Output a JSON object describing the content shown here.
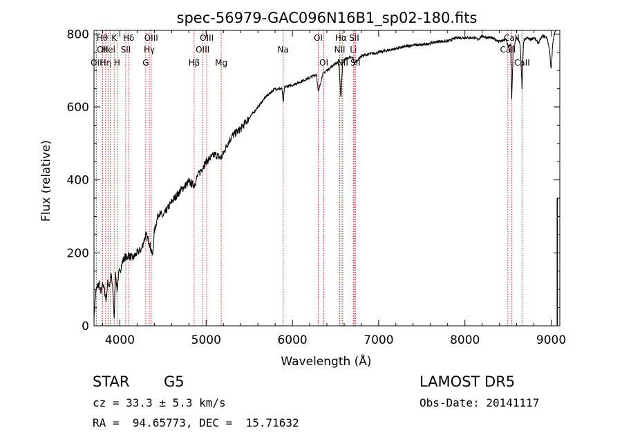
{
  "chart_data": {
    "type": "line",
    "title": "spec-56979-GAC096N16B1_sp02-180.fits",
    "xlabel": "Wavelength (Å)",
    "ylabel": "Flux (relative)",
    "xlim": [
      3700,
      9100
    ],
    "ylim": [
      0,
      810
    ],
    "xticks": [
      4000,
      5000,
      6000,
      7000,
      8000,
      9000
    ],
    "yticks": [
      0,
      200,
      400,
      600,
      800
    ],
    "grid": false,
    "line_color": "#000000",
    "marker_color": "#cc2222",
    "series": [
      {
        "x": [
          3700,
          3720,
          3740,
          3760,
          3780,
          3800,
          3820,
          3840,
          3860,
          3880,
          3900,
          3920,
          3935,
          3950,
          3968,
          3985,
          4000,
          4030,
          4060,
          4080,
          4100,
          4120,
          4150,
          4200,
          4250,
          4300,
          4340,
          4380,
          4400,
          4450,
          4500,
          4600,
          4700,
          4800,
          4861,
          4900,
          5000,
          5100,
          5175,
          5250,
          5300,
          5400,
          5500,
          5600,
          5700,
          5800,
          5880,
          5893,
          5910,
          6000,
          6100,
          6200,
          6280,
          6300,
          6350,
          6400,
          6450,
          6500,
          6540,
          6563,
          6580,
          6600,
          6650,
          6700,
          6720,
          6800,
          6900,
          7000,
          7100,
          7200,
          7300,
          7400,
          7500,
          7600,
          7700,
          7800,
          7900,
          8000,
          8100,
          8150,
          8200,
          8250,
          8300,
          8400,
          8480,
          8500,
          8530,
          8542,
          8560,
          8600,
          8640,
          8662,
          8680,
          8720,
          8760,
          8800,
          8850,
          8900,
          8950,
          8980,
          9000,
          9020,
          9040,
          9050
        ],
        "y": [
          20,
          90,
          110,
          115,
          85,
          120,
          100,
          70,
          120,
          110,
          140,
          90,
          20,
          150,
          95,
          140,
          150,
          175,
          190,
          185,
          195,
          190,
          185,
          200,
          210,
          250,
          230,
          190,
          260,
          310,
          300,
          340,
          370,
          395,
          385,
          410,
          450,
          470,
          460,
          500,
          520,
          540,
          570,
          600,
          630,
          650,
          650,
          610,
          655,
          660,
          670,
          680,
          690,
          640,
          690,
          700,
          710,
          720,
          720,
          620,
          715,
          730,
          735,
          735,
          720,
          740,
          745,
          750,
          755,
          760,
          765,
          770,
          770,
          775,
          780,
          780,
          790,
          790,
          790,
          785,
          795,
          790,
          790,
          780,
          785,
          765,
          770,
          620,
          760,
          790,
          775,
          650,
          780,
          790,
          785,
          790,
          775,
          795,
          790,
          760,
          700,
          780,
          800,
          810
        ]
      }
    ],
    "line_markers": [
      {
        "wl": 3727,
        "text": "OII",
        "row": 2
      },
      {
        "wl": 3799,
        "text": "OII",
        "row": 1
      },
      {
        "wl": 3797,
        "text": "Hθ",
        "row": 0
      },
      {
        "wl": 3835,
        "text": "Hη",
        "row": 2
      },
      {
        "wl": 3869,
        "text": "HeI",
        "row": 1
      },
      {
        "wl": 3889,
        "text": "",
        "row": 0
      },
      {
        "wl": 3934,
        "text": "K",
        "row": 0
      },
      {
        "wl": 3968,
        "text": "H",
        "row": 2
      },
      {
        "wl": 4068,
        "text": "SII",
        "row": 1
      },
      {
        "wl": 4102,
        "text": "Hδ",
        "row": 0
      },
      {
        "wl": 4300,
        "text": "G",
        "row": 2
      },
      {
        "wl": 4341,
        "text": "Hγ",
        "row": 1
      },
      {
        "wl": 4363,
        "text": "OIII",
        "row": 0
      },
      {
        "wl": 4861,
        "text": "Hβ",
        "row": 2
      },
      {
        "wl": 4959,
        "text": "OIII",
        "row": 1
      },
      {
        "wl": 5007,
        "text": "OIII",
        "row": 0
      },
      {
        "wl": 5175,
        "text": "Mg",
        "row": 2
      },
      {
        "wl": 5893,
        "text": "Na",
        "row": 1
      },
      {
        "wl": 6300,
        "text": "OI",
        "row": 0
      },
      {
        "wl": 6364,
        "text": "OI",
        "row": 2
      },
      {
        "wl": 6548,
        "text": "NII",
        "row": 1
      },
      {
        "wl": 6563,
        "text": "Hα",
        "row": 0
      },
      {
        "wl": 6583,
        "text": "NII",
        "row": 2
      },
      {
        "wl": 6707,
        "text": "Li",
        "row": 1
      },
      {
        "wl": 6716,
        "text": "SII",
        "row": 0
      },
      {
        "wl": 6731,
        "text": "SII",
        "row": 2
      },
      {
        "wl": 8498,
        "text": "CaII",
        "row": 1
      },
      {
        "wl": 8542,
        "text": "CaII",
        "row": 0
      },
      {
        "wl": 8662,
        "text": "CaII",
        "row": 2
      }
    ]
  },
  "info": {
    "class_label": "STAR",
    "subclass_label": "G5",
    "survey_label": "LAMOST DR5",
    "cz_line": "cz = 33.3 ± 5.3 km/s",
    "obs_date_line": "Obs-Date: 20141117",
    "radec_line": "RA =  94.65773, DEC =  15.71632"
  }
}
